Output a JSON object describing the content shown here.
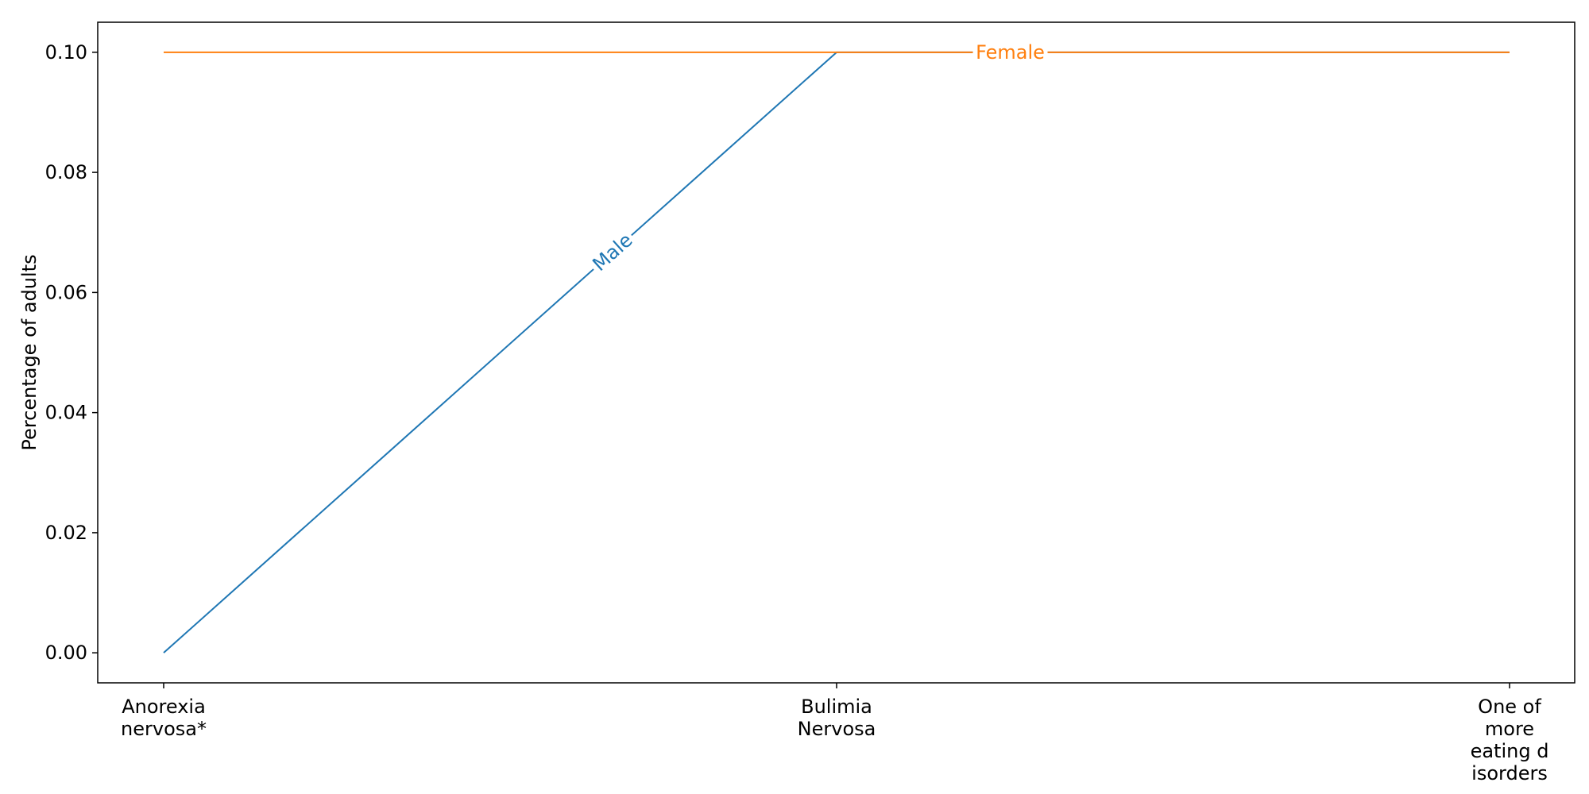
{
  "chart_data": {
    "type": "line",
    "title": "",
    "xlabel": "",
    "ylabel": "Percentage of adults",
    "categories": [
      [
        "Anorexia",
        "nervosa*"
      ],
      [
        "Bulimia",
        "Nervosa"
      ],
      [
        "One of",
        "more",
        "eating d",
        "isorders"
      ]
    ],
    "ylim": [
      -0.005,
      0.105
    ],
    "yticks": [
      0.0,
      0.02,
      0.04,
      0.06,
      0.08,
      0.1
    ],
    "ytick_labels": [
      "0.00",
      "0.02",
      "0.04",
      "0.06",
      "0.08",
      "0.10"
    ],
    "grid": false,
    "legend": "none (inline labels on lines)",
    "series": [
      {
        "name": "Male",
        "values": [
          0.0,
          0.1,
          0.1
        ],
        "color": "#1f77b4"
      },
      {
        "name": "Female",
        "values": [
          0.1,
          0.1,
          0.1
        ],
        "color": "#ff7f0e"
      }
    ]
  }
}
